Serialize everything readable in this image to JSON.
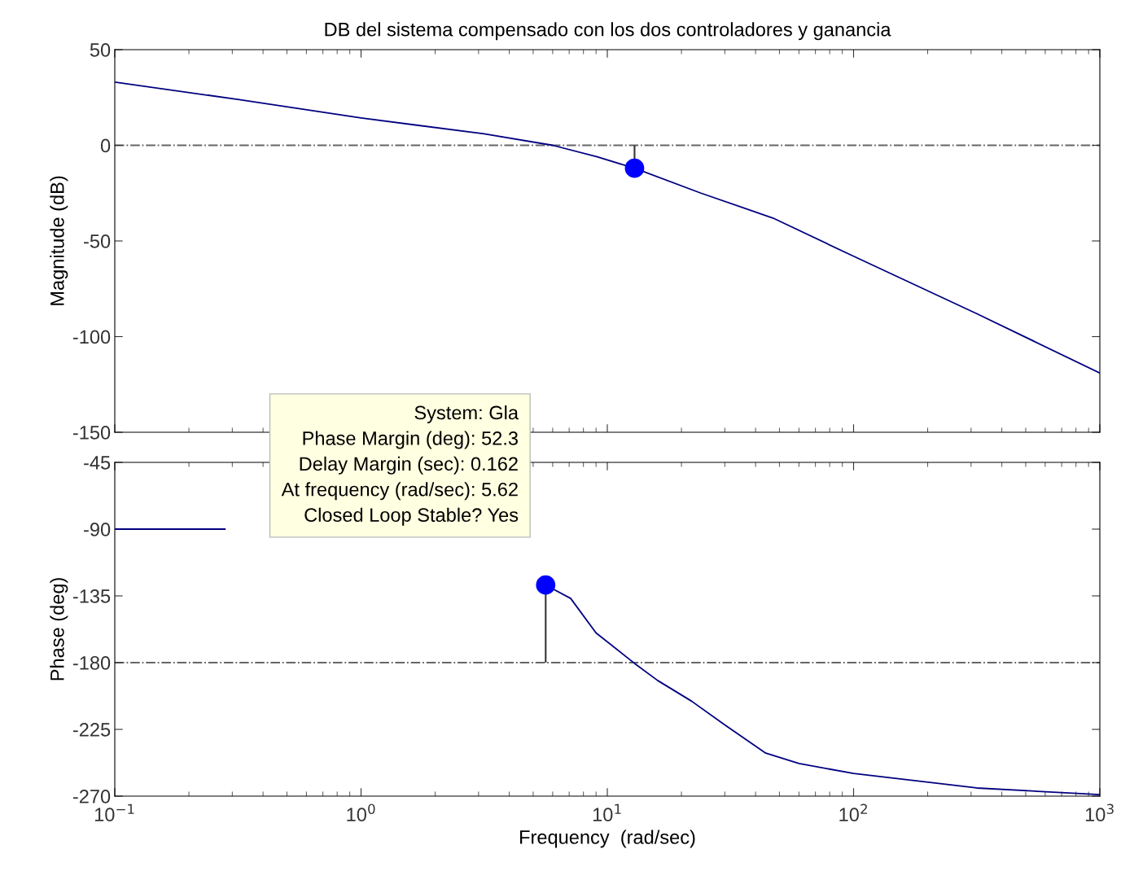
{
  "chart_data": [
    {
      "type": "line",
      "title": "DB del sistema compensado con los dos controladores y ganancia",
      "ylabel": "Magnitude (dB)",
      "log": "x",
      "xlim": [
        0.1,
        1000
      ],
      "xticks": [
        {
          "value": 0.1,
          "label": null
        },
        {
          "value": 1,
          "label": null
        },
        {
          "value": 10,
          "label": null
        },
        {
          "value": 100,
          "label": null
        },
        {
          "value": 1000,
          "label": null
        }
      ],
      "ylim": [
        -150,
        50
      ],
      "yticks": [
        -150,
        -100,
        -50,
        0,
        50
      ],
      "tick_labels": "y",
      "grid": false,
      "legend": false,
      "series": [
        {
          "color": "#000080",
          "x": [
            0.1,
            0.316,
            1,
            3.16,
            6,
            9.1,
            12.9,
            24,
            47,
            100,
            316,
            1000
          ],
          "values": [
            33,
            24,
            14.3,
            6,
            0,
            -6,
            -12,
            -25,
            -38,
            -58,
            -88,
            -119
          ]
        },
        {
          "type": "scatter",
          "color": "#0000ff",
          "marker": "circle",
          "x": [
            12.9
          ],
          "values": [
            -12
          ],
          "errors": [
            [
              -12,
              0
            ]
          ]
        }
      ],
      "ref_lines": [
        {
          "axis": "y",
          "value": 0,
          "color": "#666666",
          "line_style": "dashdot"
        }
      ]
    },
    {
      "type": "line",
      "xlabel": "Frequency  (rad/sec)",
      "ylabel": "Phase (deg)",
      "log": "x",
      "xlim": [
        0.1,
        1000
      ],
      "xticks": [
        {
          "value": 0.1,
          "label": "10$^{−1}$"
        },
        {
          "value": 1,
          "label": "10$^{0}$"
        },
        {
          "value": 10,
          "label": "10$^{1}$"
        },
        {
          "value": 100,
          "label": "10$^{2}$"
        },
        {
          "value": 1000,
          "label": "10$^{3}$"
        }
      ],
      "ylim": [
        -270,
        -45
      ],
      "yticks": [
        -270,
        -225,
        -180,
        -135,
        -90,
        -45
      ],
      "grid": false,
      "legend": false,
      "series": [
        {
          "color": "#000080",
          "x": [
            0.1,
            0.2,
            0.28,
            1,
            5.62,
            7.1,
            9,
            12.9,
            16,
            22,
            30,
            44,
            60,
            100,
            316,
            1000
          ],
          "values": [
            -90,
            -90,
            -90,
            null,
            -127.7,
            -136.7,
            -160,
            -180.5,
            -192,
            -206,
            -222,
            -241,
            -248,
            -254.7,
            -264.5,
            -269
          ]
        },
        {
          "type": "scatter",
          "color": "#0000ff",
          "marker": "circle",
          "x": [
            5.62
          ],
          "values": [
            -127.7
          ],
          "errors": [
            [
              -180,
              -127.7
            ]
          ]
        }
      ],
      "ref_lines": [
        {
          "axis": "y",
          "value": -180,
          "color": "#666666",
          "line_style": "dashdot"
        }
      ],
      "annotations": [
        "System: Gla\nPhase Margin (deg): 52.3\nDelay Margin (sec): 0.162\nAt frequency (rad/sec): 5.62\nClosed Loop Stable? Yes"
      ]
    }
  ]
}
